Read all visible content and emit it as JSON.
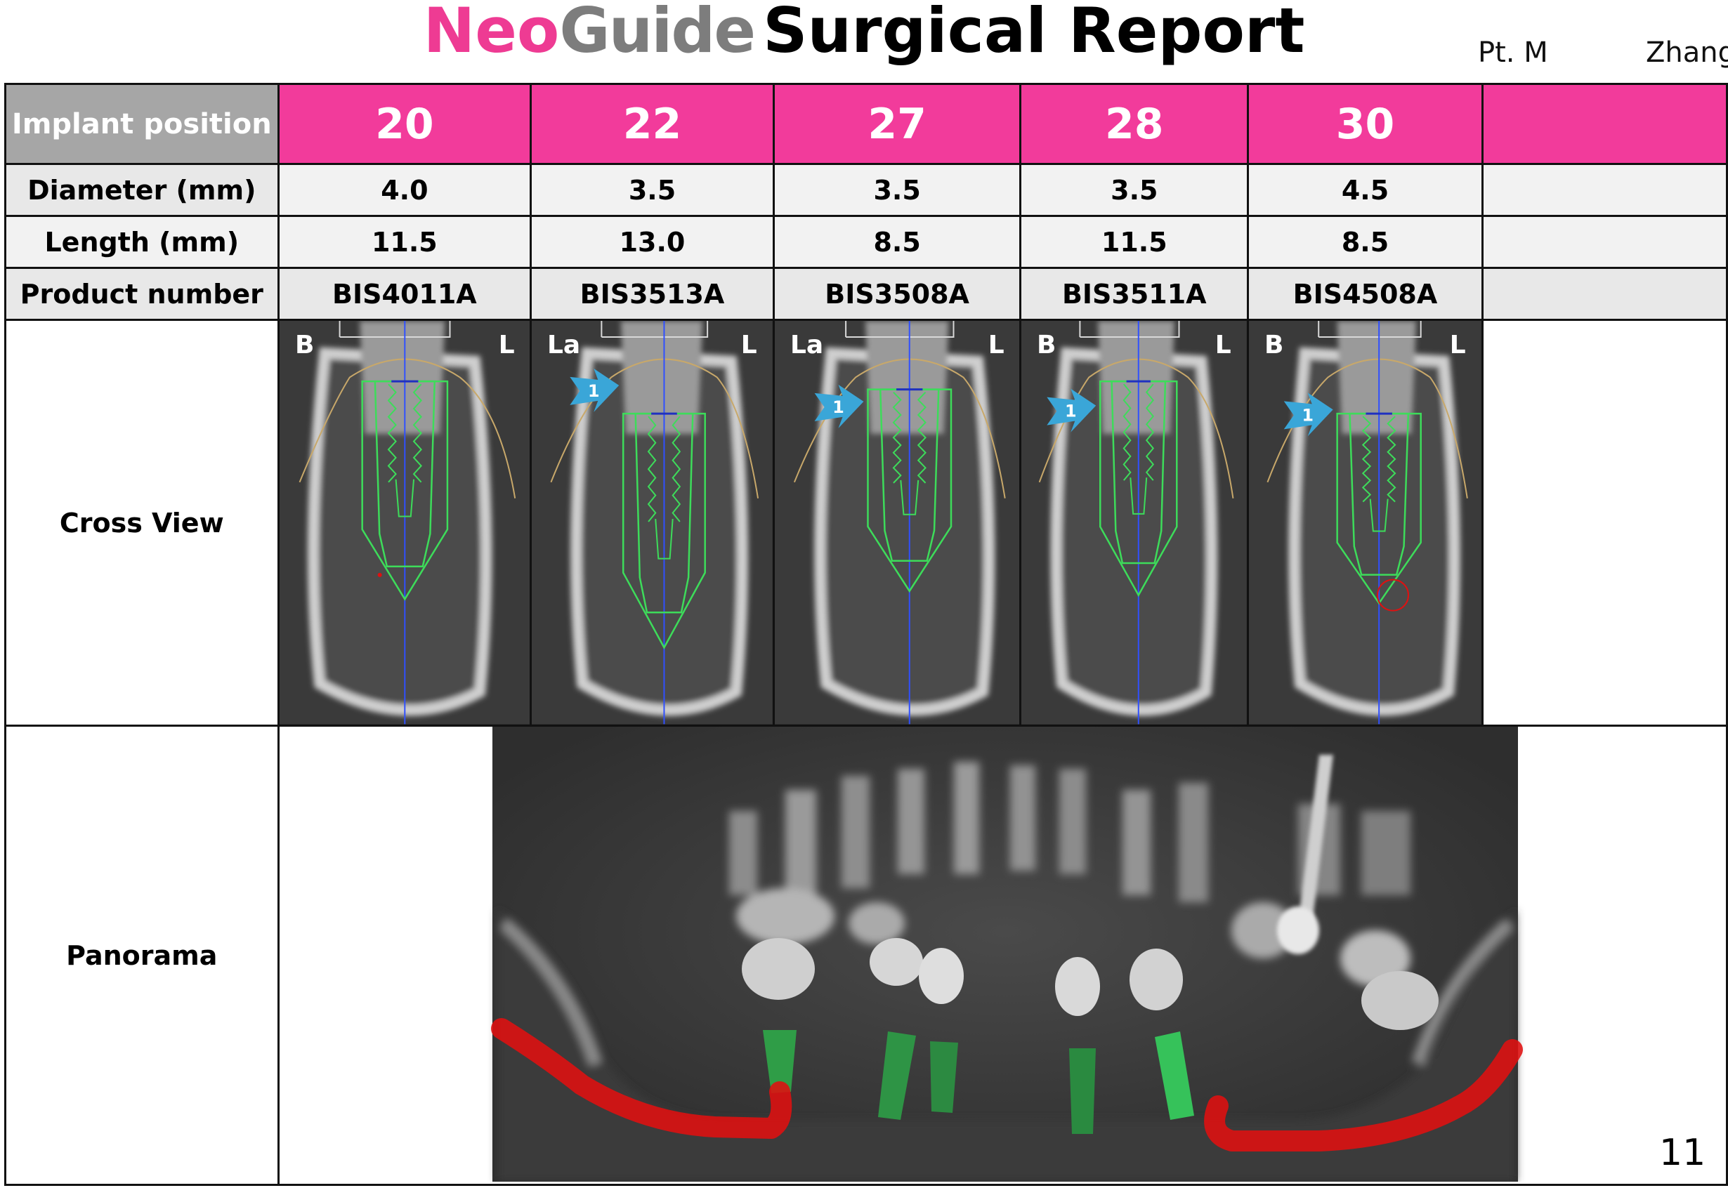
{
  "title": {
    "neo": "Neo",
    "guide": "Guide",
    "rest": "Surgical Report"
  },
  "patient": {
    "label": "Pt. M",
    "name": "Zhang"
  },
  "table": {
    "header_label": "Implant position",
    "positions": [
      "20",
      "22",
      "27",
      "28",
      "30",
      ""
    ],
    "rows": [
      {
        "label": "Diameter (mm)",
        "values": [
          "4.0",
          "3.5",
          "3.5",
          "3.5",
          "4.5",
          ""
        ]
      },
      {
        "label": "Length (mm)",
        "values": [
          "11.5",
          "13.0",
          "8.5",
          "11.5",
          "8.5",
          ""
        ]
      },
      {
        "label": "Product number",
        "values": [
          "BIS4011A",
          "BIS3513A",
          "BIS3508A",
          "BIS3511A",
          "BIS4508A",
          ""
        ]
      }
    ],
    "cross_view_label": "Cross View",
    "panorama_label": "Panorama"
  },
  "cross_views": [
    {
      "left": "B",
      "right": "L",
      "marker": ""
    },
    {
      "left": "La",
      "right": "L",
      "marker": "1"
    },
    {
      "left": "La",
      "right": "L",
      "marker": "1"
    },
    {
      "left": "B",
      "right": "L",
      "marker": "1"
    },
    {
      "left": "B",
      "right": "L",
      "marker": "1"
    }
  ],
  "colors": {
    "brand_pink": "#f23b9b",
    "brand_gray": "#7d7d7d",
    "header_gray": "#a6a6a6",
    "implant_green": "#3ddc5a",
    "axis_blue": "#3050ff",
    "nerve_red": "#e01010",
    "marker_blue": "#3aa6d8"
  },
  "page_number": "11"
}
